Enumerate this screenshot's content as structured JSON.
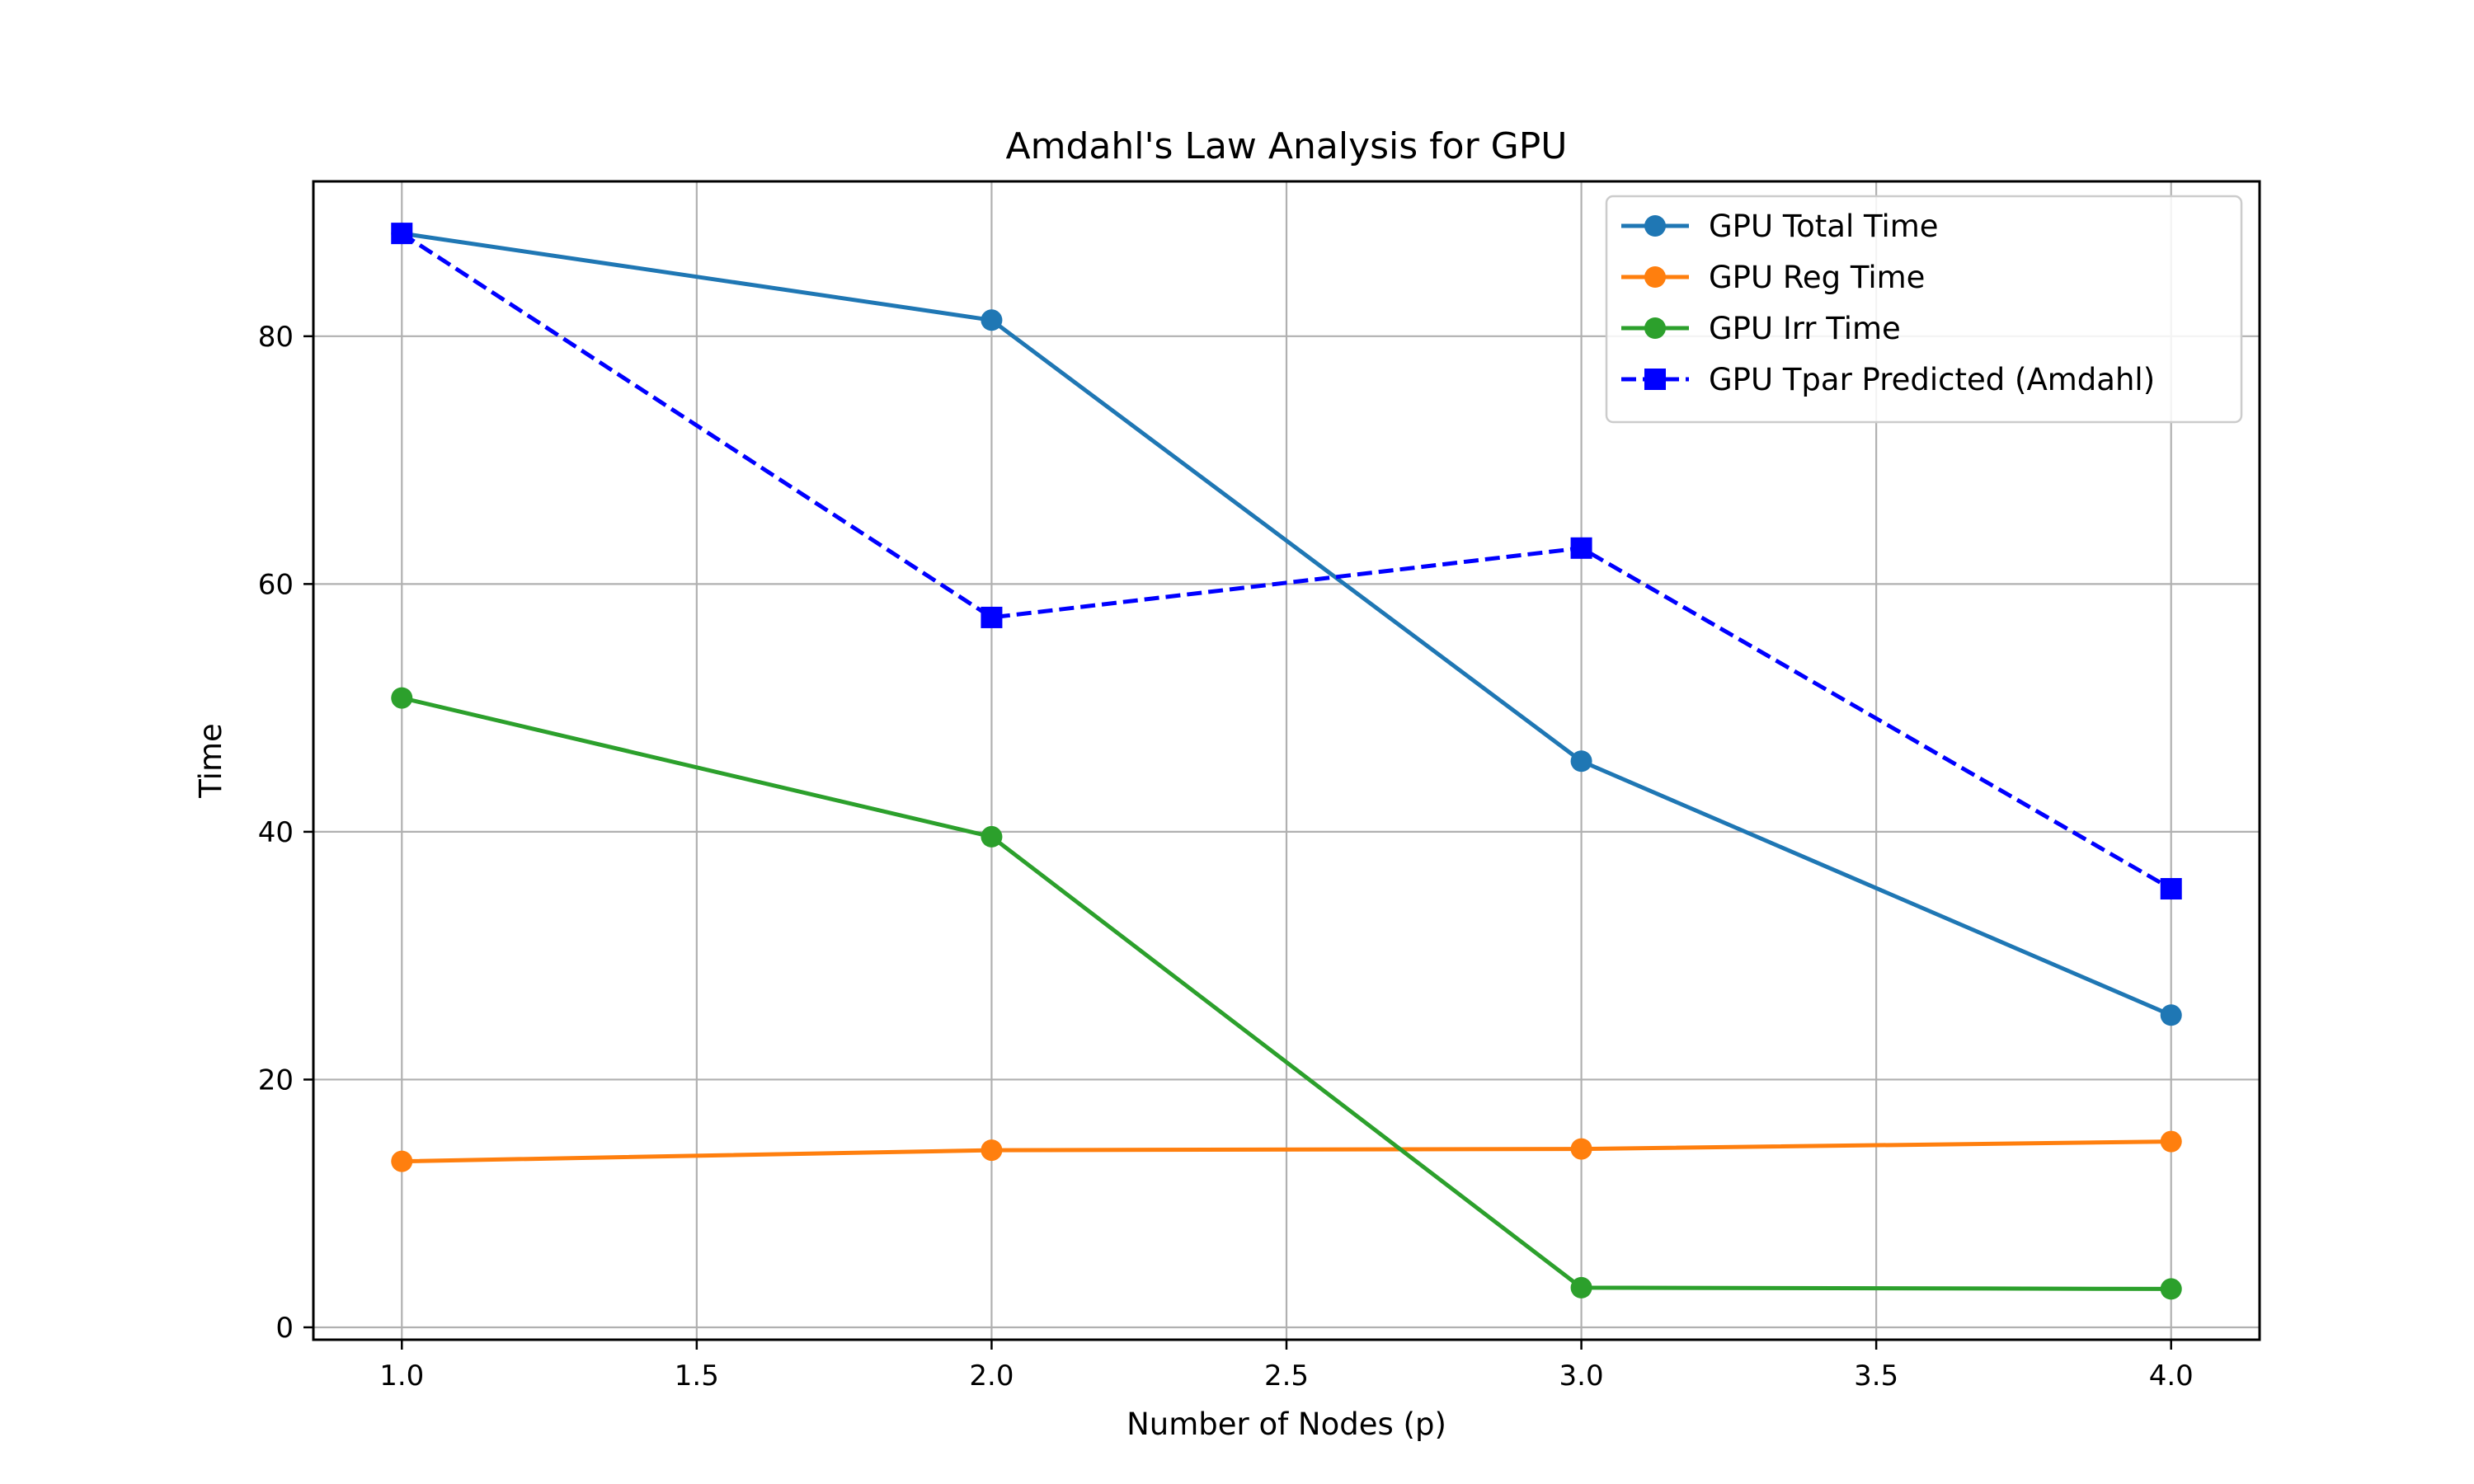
{
  "chart_data": {
    "type": "line",
    "title": "Amdahl's Law Analysis for GPU",
    "xlabel": "Number of Nodes (p)",
    "ylabel": "Time",
    "xlim": [
      0.85,
      4.15
    ],
    "ylim": [
      -1,
      92.5
    ],
    "xticks": [
      1.0,
      1.5,
      2.0,
      2.5,
      3.0,
      3.5,
      4.0
    ],
    "xtick_labels": [
      "1.0",
      "1.5",
      "2.0",
      "2.5",
      "3.0",
      "3.5",
      "4.0"
    ],
    "yticks": [
      0,
      20,
      40,
      60,
      80
    ],
    "ytick_labels": [
      "0",
      "20",
      "40",
      "60",
      "80"
    ],
    "grid": true,
    "legend_position": "top-right",
    "series": [
      {
        "name": "GPU Total Time",
        "color": "#1f77b4",
        "style": "solid",
        "marker": "circle",
        "x": [
          1,
          2,
          3,
          4
        ],
        "values": [
          88.3,
          81.3,
          45.7,
          25.2
        ]
      },
      {
        "name": "GPU Reg Time",
        "color": "#ff7f0e",
        "style": "solid",
        "marker": "circle",
        "x": [
          1,
          2,
          3,
          4
        ],
        "values": [
          13.4,
          14.3,
          14.4,
          15.0
        ]
      },
      {
        "name": "GPU Irr Time",
        "color": "#2ca02c",
        "style": "solid",
        "marker": "circle",
        "x": [
          1,
          2,
          3,
          4
        ],
        "values": [
          50.8,
          39.6,
          3.2,
          3.1
        ]
      },
      {
        "name": "GPU Tpar Predicted (Amdahl)",
        "color": "#0000ff",
        "style": "dashed",
        "marker": "square",
        "x": [
          1,
          2,
          3,
          4
        ],
        "values": [
          88.3,
          57.3,
          62.9,
          35.4
        ]
      }
    ]
  }
}
